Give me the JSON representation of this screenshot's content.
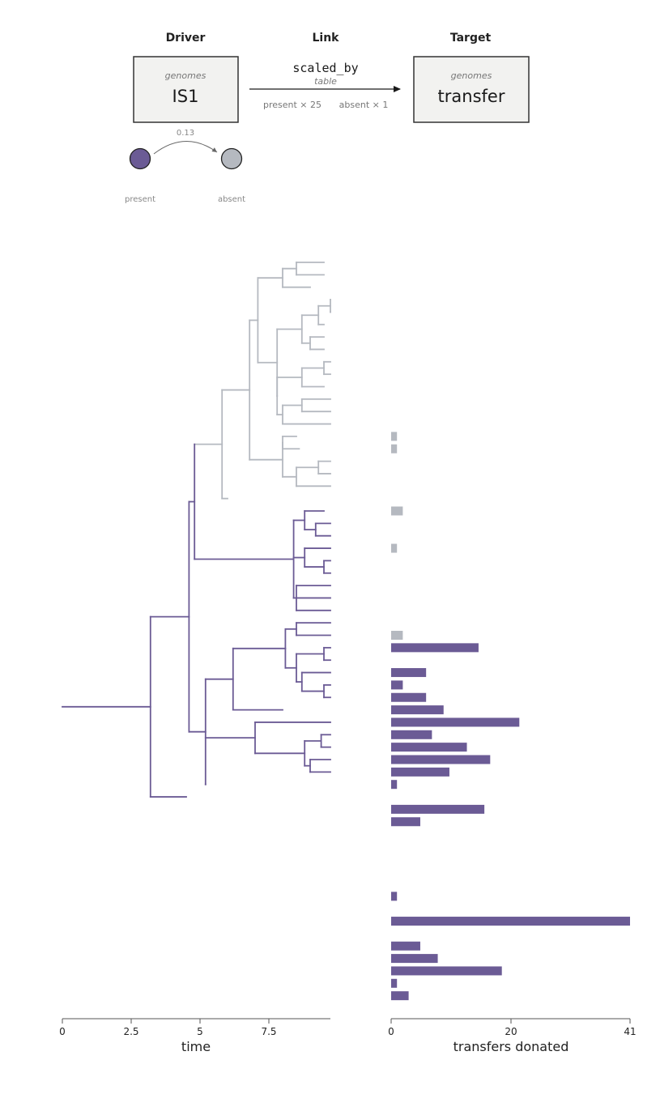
{
  "colors": {
    "present": "#6b5b95",
    "absent": "#b5b9c0",
    "box_fill": "#f2f2f0",
    "box_stroke": "#333333",
    "axis": "#555555"
  },
  "header": {
    "driver": {
      "heading": "Driver",
      "kind": "genomes",
      "name": "IS1"
    },
    "link": {
      "heading": "Link",
      "relation": "scaled_by",
      "type": "table",
      "present_rule": "present × 25",
      "absent_rule": "absent × 1"
    },
    "target": {
      "heading": "Target",
      "kind": "genomes",
      "name": "transfer"
    }
  },
  "state_diagram": {
    "from_state": "present",
    "to_state": "absent",
    "rate": "0.13"
  },
  "time_axis": {
    "label": "time",
    "ticks": [
      "0",
      "2.5",
      "5",
      "7.5"
    ]
  },
  "bar_axis": {
    "label": "transfers donated",
    "ticks": [
      "0",
      "20",
      "41"
    ],
    "max": 41
  },
  "chart_data": {
    "type": "bar",
    "xlabel": "transfers donated",
    "xlim": [
      0,
      41
    ],
    "orientation": "horizontal",
    "bars": [
      {
        "leaf": 14,
        "value": 1,
        "state": "absent"
      },
      {
        "leaf": 15,
        "value": 1,
        "state": "absent"
      },
      {
        "leaf": 20,
        "value": 2,
        "state": "absent"
      },
      {
        "leaf": 23,
        "value": 1,
        "state": "absent"
      },
      {
        "leaf": 30,
        "value": 2,
        "state": "absent"
      },
      {
        "leaf": 31,
        "value": 15,
        "state": "present"
      },
      {
        "leaf": 33,
        "value": 6,
        "state": "present"
      },
      {
        "leaf": 34,
        "value": 2,
        "state": "present"
      },
      {
        "leaf": 35,
        "value": 6,
        "state": "present"
      },
      {
        "leaf": 36,
        "value": 9,
        "state": "present"
      },
      {
        "leaf": 37,
        "value": 22,
        "state": "present"
      },
      {
        "leaf": 38,
        "value": 7,
        "state": "present"
      },
      {
        "leaf": 39,
        "value": 13,
        "state": "present"
      },
      {
        "leaf": 40,
        "value": 17,
        "state": "present"
      },
      {
        "leaf": 41,
        "value": 10,
        "state": "present"
      },
      {
        "leaf": 42,
        "value": 1,
        "state": "present"
      },
      {
        "leaf": 44,
        "value": 16,
        "state": "present"
      },
      {
        "leaf": 45,
        "value": 5,
        "state": "present"
      },
      {
        "leaf": 51,
        "value": 1,
        "state": "present"
      },
      {
        "leaf": 53,
        "value": 41,
        "state": "present"
      },
      {
        "leaf": 55,
        "value": 5,
        "state": "present"
      },
      {
        "leaf": 56,
        "value": 8,
        "state": "present"
      },
      {
        "leaf": 57,
        "value": 19,
        "state": "present"
      },
      {
        "leaf": 58,
        "value": 1,
        "state": "present"
      },
      {
        "leaf": 59,
        "value": 3,
        "state": "present"
      }
    ]
  }
}
